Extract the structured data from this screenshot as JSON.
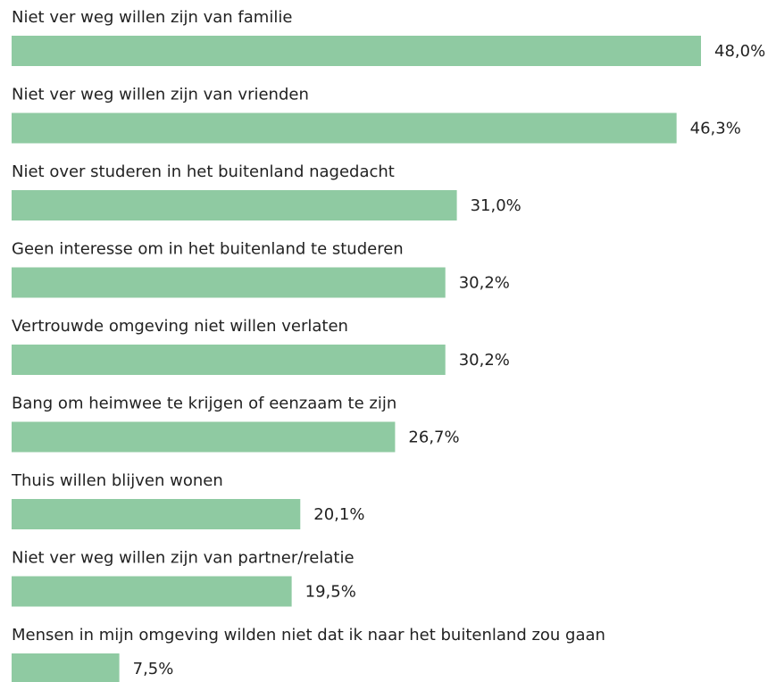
{
  "chart_data": {
    "type": "bar",
    "orientation": "horizontal",
    "color": "#8fcaa2",
    "categories": [
      "Niet ver weg willen zijn van familie",
      "Niet ver weg willen zijn van vrienden",
      "Niet over studeren in het buitenland nagedacht",
      "Geen interesse om in het buitenland te studeren",
      "Vertrouwde omgeving niet willen verlaten",
      "Bang om heimwee te krijgen of eenzaam te zijn",
      "Thuis willen blijven wonen",
      "Niet ver weg willen zijn van partner/relatie",
      "Mensen in mijn omgeving wilden niet dat ik naar het buitenland zou gaan"
    ],
    "values": [
      48.0,
      46.3,
      31.0,
      30.2,
      30.2,
      26.7,
      20.1,
      19.5,
      7.5
    ],
    "value_labels": [
      "48,0%",
      "46,3%",
      "31,0%",
      "30,2%",
      "30,2%",
      "26,7%",
      "20,1%",
      "19,5%",
      "7,5%"
    ]
  }
}
